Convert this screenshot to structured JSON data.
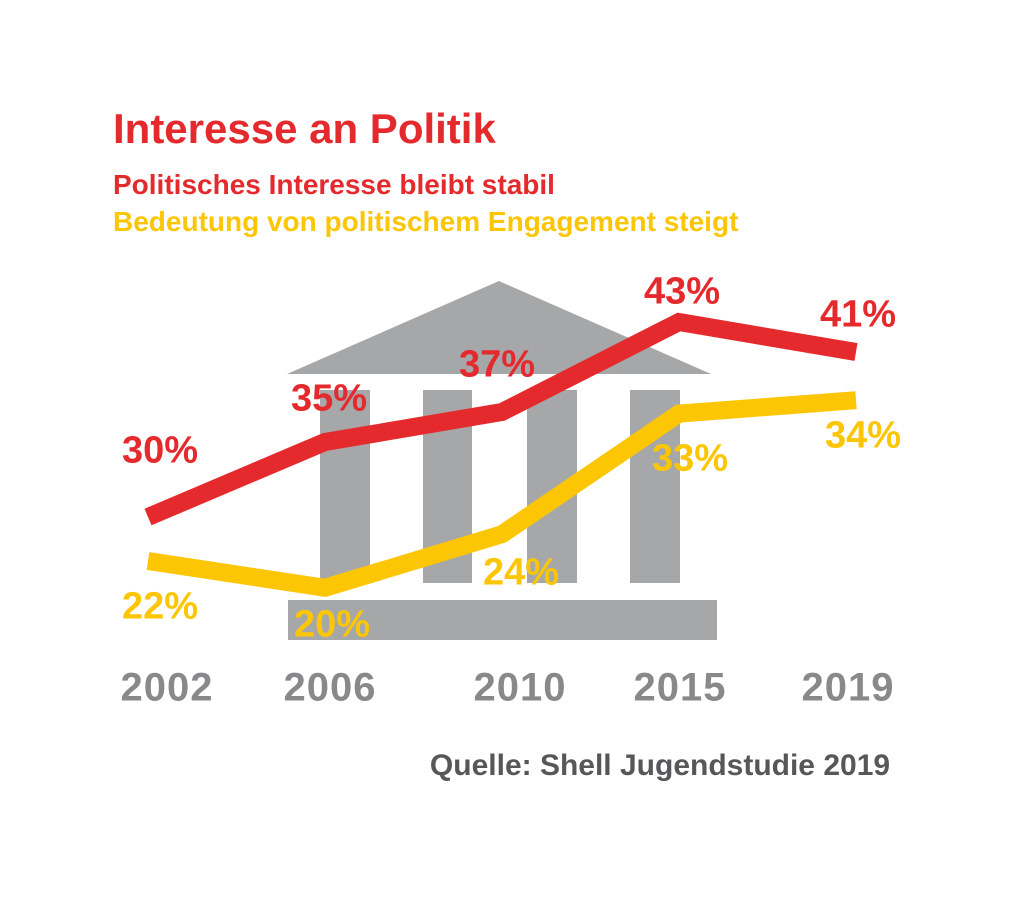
{
  "header": {
    "title": "Interesse an Politik",
    "subtitle_red": "Politisches Interesse bleibt stabil",
    "subtitle_yellow": "Bedeutung von politischem Engagement steigt"
  },
  "chart_data": {
    "type": "line",
    "categories": [
      "2002",
      "2006",
      "2010",
      "2015",
      "2019"
    ],
    "series": [
      {
        "name": "Politisches Interesse",
        "color": "#e52a2e",
        "values": [
          30,
          35,
          37,
          43,
          41
        ],
        "labels": [
          "30%",
          "35%",
          "37%",
          "43%",
          "41%"
        ]
      },
      {
        "name": "Bedeutung von politischem Engagement",
        "color": "#fdc605",
        "values": [
          22,
          20,
          24,
          33,
          34
        ],
        "labels": [
          "22%",
          "20%",
          "24%",
          "33%",
          "34%"
        ]
      }
    ],
    "unit": "%",
    "grid": false,
    "legend": "none",
    "axes_visible": false,
    "background_icon": "greek-temple"
  },
  "source": "Quelle: Shell Jugendstudie 2019",
  "colors": {
    "red": "#e52a2e",
    "yellow": "#fdc605",
    "temple_gray": "#a6a7a9",
    "year_gray": "#88898b",
    "source_gray": "#57575a",
    "background": "#ffffff"
  }
}
